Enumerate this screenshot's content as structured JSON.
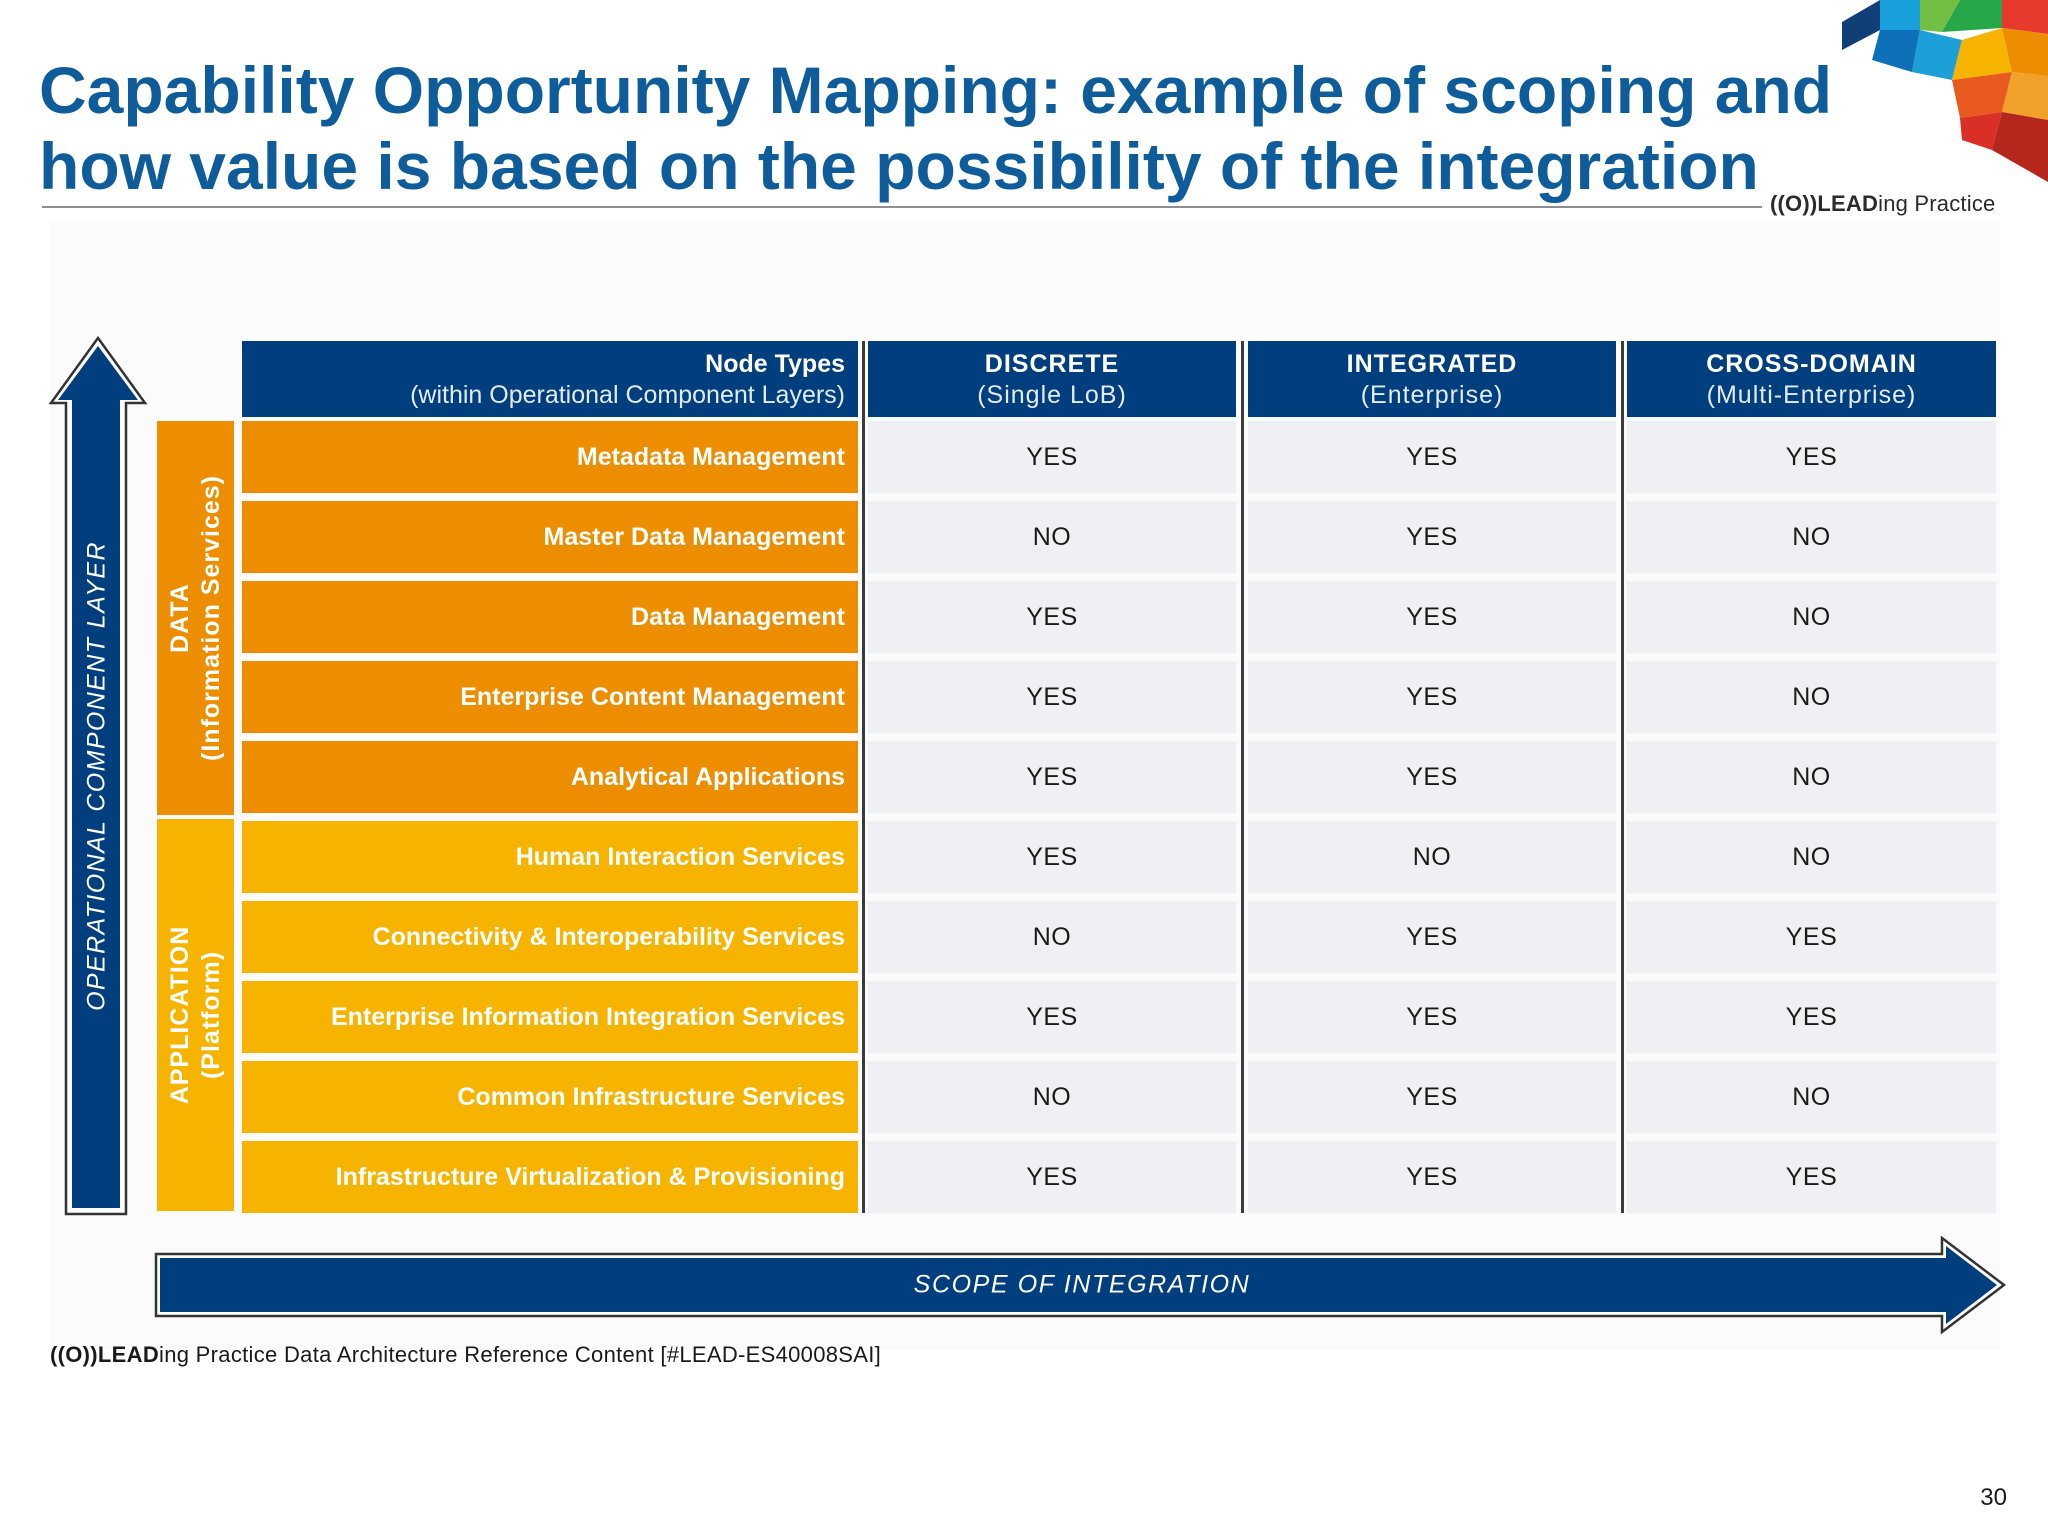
{
  "title": {
    "line1": "Capability Opportunity Mapping: example of scoping and",
    "line2": "how value is based on the possibility of the integration"
  },
  "brand": {
    "mark": "((O))LEAD",
    "name": "ing Practice"
  },
  "axis": {
    "vertical": "OPERATIONAL COMPONENT LAYER",
    "horizontal": "SCOPE OF INTEGRATION"
  },
  "header": {
    "node_types": {
      "line1": "Node Types",
      "line2": "(within Operational Component Layers)"
    },
    "columns": [
      {
        "line1": "DISCRETE",
        "line2": "(Single LoB)"
      },
      {
        "line1": "INTEGRATED",
        "line2": "(Enterprise)"
      },
      {
        "line1": "CROSS-DOMAIN",
        "line2": "(Multi-Enterprise)"
      }
    ]
  },
  "groups": {
    "data": {
      "line1": "DATA",
      "line2": "(Information Services)",
      "color": "#ec8e00"
    },
    "application": {
      "line1": "APPLICATION",
      "line2": "(Platform)",
      "color": "#f6b400"
    }
  },
  "rows": [
    {
      "label": "Metadata Management",
      "discrete": "YES",
      "integrated": "YES",
      "cross_domain": "YES"
    },
    {
      "label": "Master Data Management",
      "discrete": "NO",
      "integrated": "YES",
      "cross_domain": "NO"
    },
    {
      "label": "Data Management",
      "discrete": "YES",
      "integrated": "YES",
      "cross_domain": "NO"
    },
    {
      "label": "Enterprise Content Management",
      "discrete": "YES",
      "integrated": "YES",
      "cross_domain": "NO"
    },
    {
      "label": "Analytical Applications",
      "discrete": "YES",
      "integrated": "YES",
      "cross_domain": "NO"
    },
    {
      "label": "Human Interaction Services",
      "discrete": "YES",
      "integrated": "NO",
      "cross_domain": "NO"
    },
    {
      "label": "Connectivity & Interoperability Services",
      "discrete": "NO",
      "integrated": "YES",
      "cross_domain": "YES"
    },
    {
      "label": "Enterprise Information Integration Services",
      "discrete": "YES",
      "integrated": "YES",
      "cross_domain": "YES"
    },
    {
      "label": "Common Infrastructure Services",
      "discrete": "NO",
      "integrated": "YES",
      "cross_domain": "NO"
    },
    {
      "label": "Infrastructure Virtualization & Provisioning",
      "discrete": "YES",
      "integrated": "YES",
      "cross_domain": "YES"
    }
  ],
  "footer": {
    "mark": "((O))LEAD",
    "text": "ing Practice Data Architecture Reference Content [#LEAD-ES40008SAI]"
  },
  "page_number": "30",
  "colors": {
    "navy": "#003e7e",
    "title_blue": "#0f5c9a",
    "data_orange": "#ec8e00",
    "app_yellow": "#f6b400",
    "cell_bg": "#eef0f3"
  }
}
